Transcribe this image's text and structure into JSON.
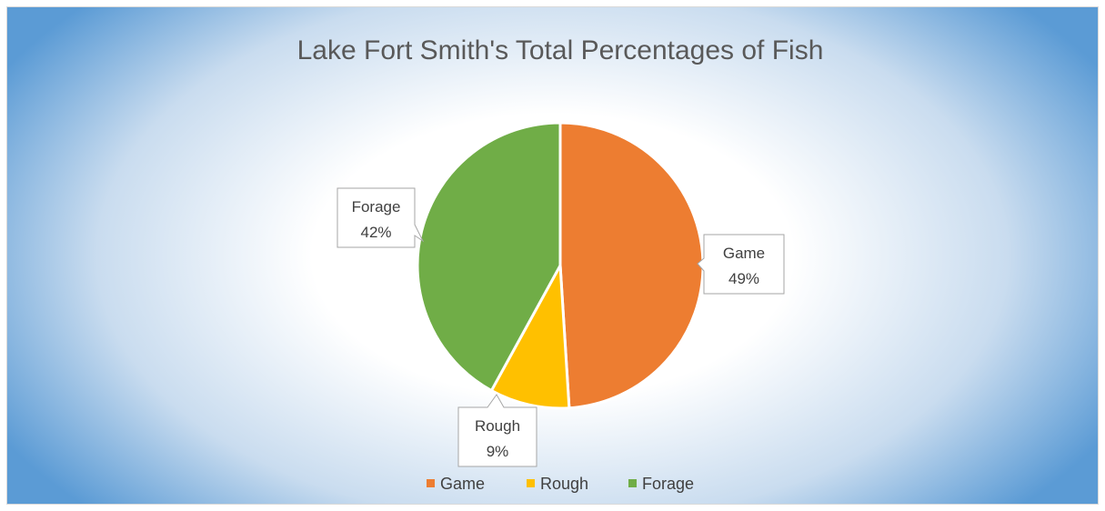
{
  "chart_data": {
    "type": "pie",
    "title": "Lake Fort Smith's Total Percentages of Fish",
    "categories": [
      "Game",
      "Rough",
      "Forage"
    ],
    "values": [
      49,
      9,
      42
    ],
    "labels": [
      "49%",
      "9%",
      "42%"
    ],
    "colors": [
      "#ed7d31",
      "#ffc000",
      "#70ad47"
    ],
    "legend_position": "bottom",
    "data_labels": "category name and percentage, callout"
  }
}
